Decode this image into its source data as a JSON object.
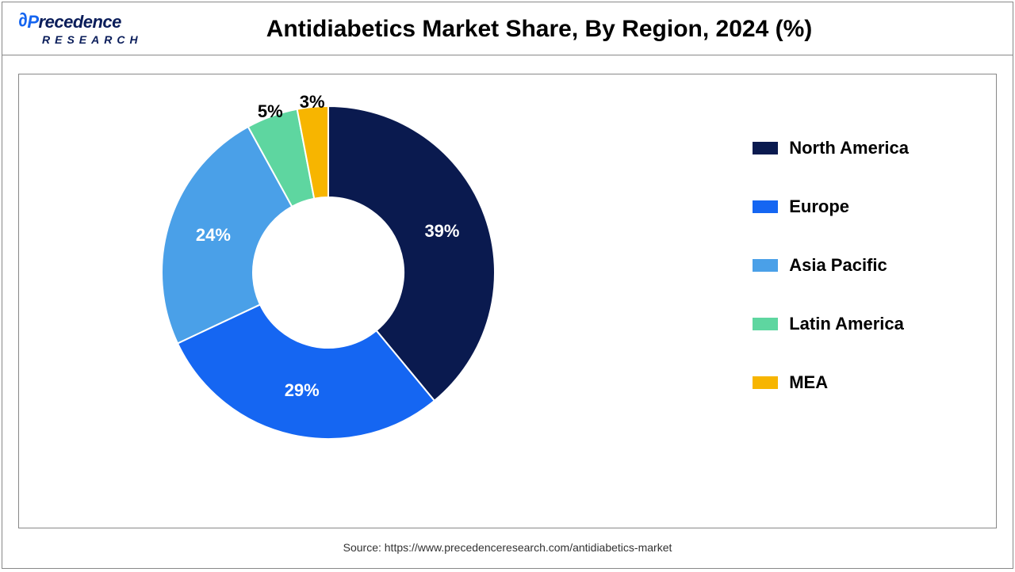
{
  "logo": {
    "line1_prefix": "P",
    "line1_main": "recedence",
    "line2": "RESEARCH"
  },
  "title": "Antidiabetics Market Share, By Region, 2024 (%)",
  "chart": {
    "type": "donut",
    "start_angle_deg": 0,
    "inner_radius": 95,
    "outer_radius": 210,
    "background_color": "#ffffff",
    "label_fontsize": 22,
    "label_color_on_dark": "#ffffff",
    "label_color_on_light": "#000000",
    "slices": [
      {
        "name": "North America",
        "value": 39,
        "label": "39%",
        "color": "#0a1a4f",
        "label_color": "#ffffff"
      },
      {
        "name": "Europe",
        "value": 29,
        "label": "29%",
        "color": "#1566f2",
        "label_color": "#ffffff"
      },
      {
        "name": "Asia Pacific",
        "value": 24,
        "label": "24%",
        "color": "#4aa0e8",
        "label_color": "#ffffff"
      },
      {
        "name": "Latin America",
        "value": 5,
        "label": "5%",
        "color": "#5ed6a0",
        "label_color": "#000000"
      },
      {
        "name": "MEA",
        "value": 3,
        "label": "3%",
        "color": "#f7b500",
        "label_color": "#000000"
      }
    ]
  },
  "legend": {
    "items": [
      {
        "label": "North America",
        "color": "#0a1a4f"
      },
      {
        "label": "Europe",
        "color": "#1566f2"
      },
      {
        "label": "Asia Pacific",
        "color": "#4aa0e8"
      },
      {
        "label": "Latin America",
        "color": "#5ed6a0"
      },
      {
        "label": "MEA",
        "color": "#f7b500"
      }
    ],
    "swatch_width": 32,
    "swatch_height": 16,
    "label_fontsize": 22,
    "gap": 48
  },
  "source": "Source: https://www.precedenceresearch.com/antidiabetics-market"
}
